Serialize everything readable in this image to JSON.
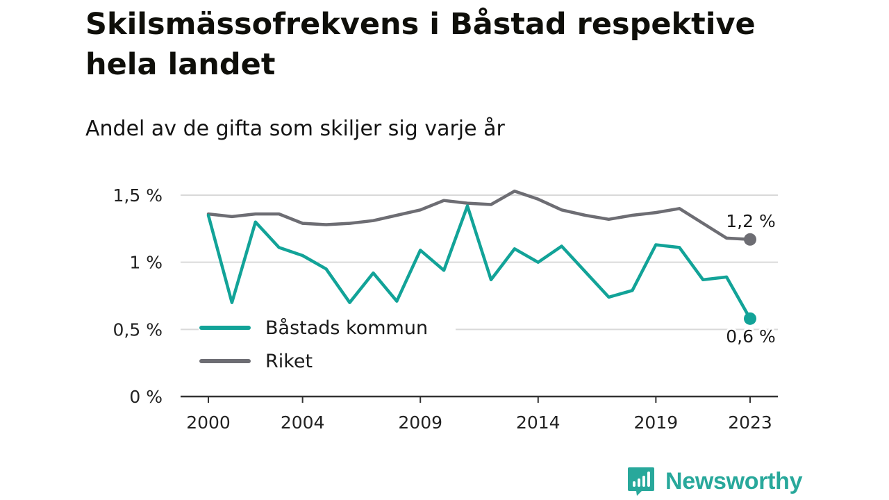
{
  "chart_data": {
    "type": "line",
    "title": "Skilsmässofrekvens i Båstad respektive hela landet",
    "subtitle": "Andel av de gifta som skiljer sig varje år",
    "x": [
      2000,
      2001,
      2002,
      2003,
      2004,
      2005,
      2006,
      2007,
      2008,
      2009,
      2010,
      2011,
      2012,
      2013,
      2014,
      2015,
      2016,
      2017,
      2018,
      2019,
      2020,
      2021,
      2022,
      2023
    ],
    "x_ticks": [
      2000,
      2004,
      2009,
      2014,
      2019,
      2023
    ],
    "x_tick_labels": [
      "2000",
      "2004",
      "2009",
      "2014",
      "2019",
      "2023"
    ],
    "xlim": [
      2000,
      2023
    ],
    "ylim": [
      0,
      1.5
    ],
    "y_ticks": [
      0,
      0.5,
      1,
      1.5
    ],
    "y_tick_labels": [
      "0 %",
      "0,5 %",
      "1 %",
      "1,5 %"
    ],
    "grid": true,
    "legend_position": "lower-left",
    "series": [
      {
        "name": "Båstads kommun",
        "color": "#12a398",
        "values": [
          1.35,
          0.7,
          1.3,
          1.11,
          1.05,
          0.95,
          0.7,
          0.92,
          0.71,
          1.09,
          0.94,
          1.42,
          0.87,
          1.1,
          1.0,
          1.12,
          0.93,
          0.74,
          0.79,
          1.13,
          1.11,
          0.87,
          0.89,
          0.58
        ],
        "end_label": "0,6 %"
      },
      {
        "name": "Riket",
        "color": "#6d6d73",
        "values": [
          1.36,
          1.34,
          1.36,
          1.36,
          1.29,
          1.28,
          1.29,
          1.31,
          1.35,
          1.39,
          1.46,
          1.44,
          1.43,
          1.53,
          1.47,
          1.39,
          1.35,
          1.32,
          1.35,
          1.37,
          1.4,
          1.29,
          1.18,
          1.17
        ],
        "end_label": "1,2 %"
      }
    ]
  },
  "brand": {
    "name": "Newsworthy",
    "color": "#28a89b",
    "icon": "bar-chart-speech-bubble-icon"
  }
}
